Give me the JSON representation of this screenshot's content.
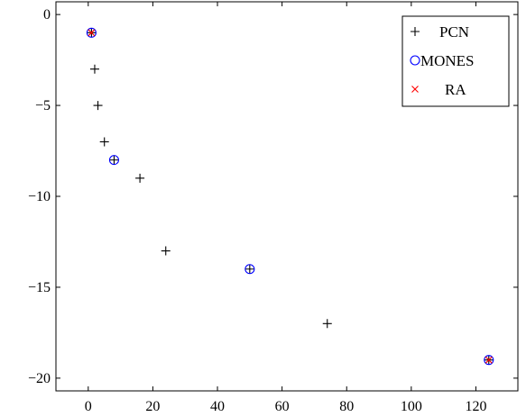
{
  "chart_data": {
    "type": "scatter",
    "xlim": [
      -10,
      133
    ],
    "ylim": [
      -20.7,
      0.7
    ],
    "xticks": [
      0,
      20,
      40,
      60,
      80,
      100,
      120
    ],
    "yticks": [
      0,
      -5,
      -10,
      -15,
      -20
    ],
    "xtick_labels": [
      "0",
      "20",
      "40",
      "60",
      "80",
      "100",
      "120"
    ],
    "ytick_labels": [
      "0",
      "−5",
      "−10",
      "−15",
      "−20"
    ],
    "grid": false,
    "legend_position": "top-right",
    "series": [
      {
        "name": "PCN",
        "marker": "plus",
        "color": "#000000",
        "x": [
          1,
          2,
          3,
          5,
          8,
          16,
          24,
          50,
          74,
          124
        ],
        "y": [
          -1,
          -3,
          -5,
          -7,
          -8,
          -9,
          -13,
          -14,
          -17,
          -19
        ]
      },
      {
        "name": "MONES",
        "marker": "circle",
        "color": "#0000ff",
        "x": [
          1,
          8,
          50,
          124
        ],
        "y": [
          -1,
          -8,
          -14,
          -19
        ]
      },
      {
        "name": "RA",
        "marker": "cross",
        "color": "#ff0000",
        "x": [
          1,
          124
        ],
        "y": [
          -1,
          -19
        ]
      }
    ]
  }
}
